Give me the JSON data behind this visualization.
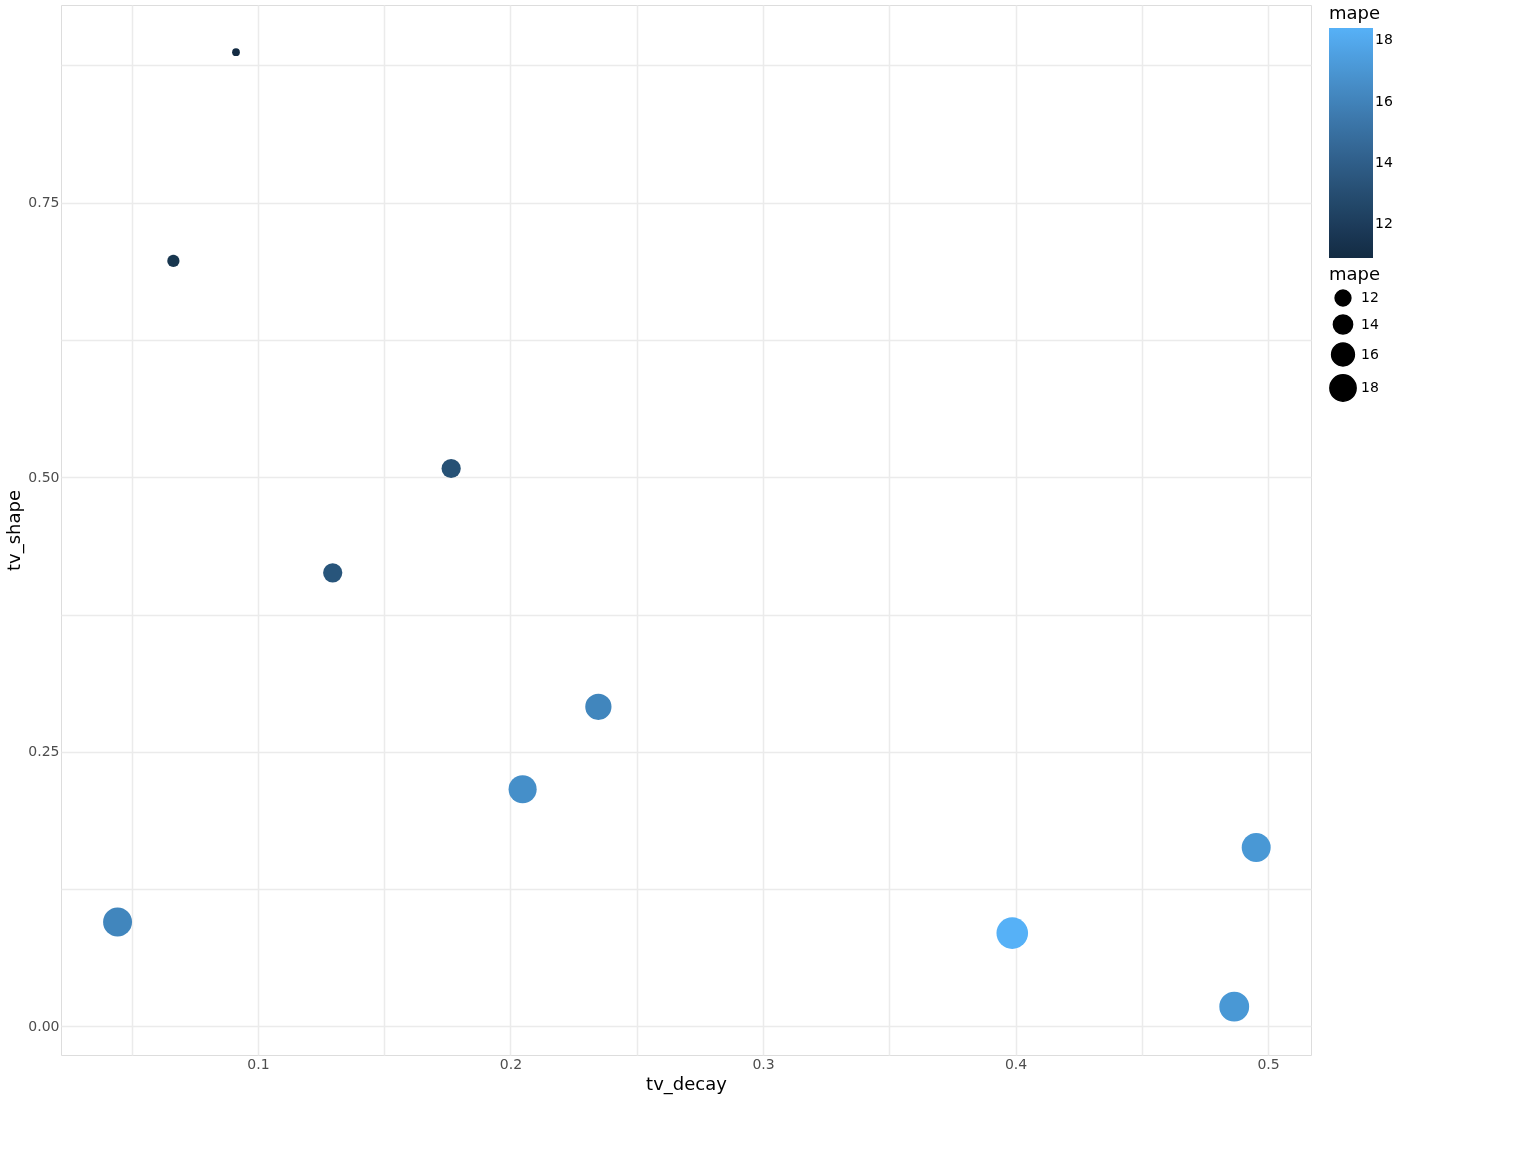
{
  "chart_data": {
    "type": "bubble",
    "xlabel": "tv_decay",
    "ylabel": "tv_shape",
    "x": [
      0.0913,
      0.0665,
      0.1765,
      0.1296,
      0.2348,
      0.2048,
      0.0444,
      0.3987,
      0.4953,
      0.4866
    ],
    "values": [
      0.887,
      0.697,
      0.508,
      0.413,
      0.291,
      0.216,
      0.095,
      0.085,
      0.163,
      0.018
    ],
    "sizes": [
      0.06,
      0.15,
      0.37,
      0.37,
      0.69,
      0.79,
      0.84,
      1,
      0.84,
      0.89
    ],
    "cvalues": [
      10.9,
      11.5,
      13.0,
      13.2,
      16.0,
      16.5,
      16.0,
      18.4,
      17.0,
      17.0
    ],
    "colors": [
      "#132b43",
      "#18364f",
      "#265175",
      "#28557b",
      "#4186bd",
      "#458fc9",
      "#4186bd",
      "#56b1f7",
      "#4998d5",
      "#4998d5"
    ],
    "clabel": "mape",
    "clim": [
      10.9,
      18.4
    ],
    "cticks": [
      12,
      14,
      16,
      18
    ],
    "legend_title": "mape",
    "size_legend": [
      {
        "value": 0.25,
        "label": "12"
      },
      {
        "value": 0.37,
        "label": "14"
      },
      {
        "value": 0.52,
        "label": "16"
      },
      {
        "value": 0.69,
        "label": "18"
      }
    ],
    "xlim": [
      0.022,
      0.517
    ],
    "xticks": [
      {
        "value": 0.05,
        "label": null
      },
      0.1,
      {
        "value": 0.15,
        "label": null
      },
      0.2,
      {
        "value": 0.25,
        "label": null
      },
      0.3,
      {
        "value": 0.35,
        "label": null
      },
      0.4,
      {
        "value": 0.45,
        "label": null
      },
      0.5
    ],
    "ylim": [
      -0.026,
      0.93
    ],
    "yticks": [
      {
        "value": 0,
        "label": "0.00"
      },
      {
        "value": 0.125,
        "label": null
      },
      {
        "value": 0.25,
        "label": "0.25"
      },
      {
        "value": 0.375,
        "label": null
      },
      {
        "value": 0.5,
        "label": "0.50"
      },
      {
        "value": 0.625,
        "label": null
      },
      {
        "value": 0.75,
        "label": "0.75"
      },
      {
        "value": 0.875,
        "label": null
      }
    ],
    "grid": true
  }
}
